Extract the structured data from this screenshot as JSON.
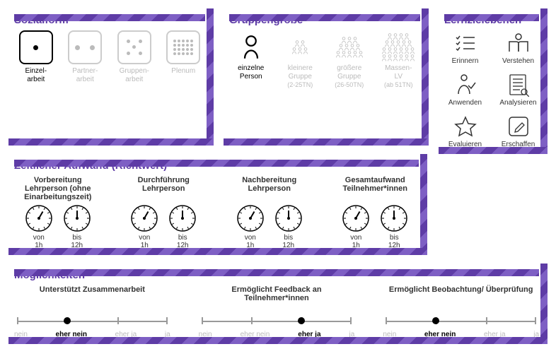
{
  "accent": "#5e3ca6",
  "sozial": {
    "title": "Sozialform",
    "items": [
      {
        "label1": "Einzel-",
        "label2": "arbeit",
        "active": true,
        "icon": "single-dot"
      },
      {
        "label1": "Partner-",
        "label2": "arbeit",
        "active": false,
        "icon": "two-dot"
      },
      {
        "label1": "Gruppen-",
        "label2": "arbeit",
        "active": false,
        "icon": "five-dot"
      },
      {
        "label1": "Plenum",
        "label2": "",
        "active": false,
        "icon": "grid"
      }
    ]
  },
  "gruppe": {
    "title": "Gruppengröße",
    "items": [
      {
        "l1": "einzelne",
        "l2": "Person",
        "l3": "",
        "active": true
      },
      {
        "l1": "kleinere",
        "l2": "Gruppe",
        "l3": "(2-25TN)",
        "active": false
      },
      {
        "l1": "größere",
        "l2": "Gruppe",
        "l3": "(26-50TN)",
        "active": false
      },
      {
        "l1": "Massen-",
        "l2": "LV",
        "l3": "(ab 51TN)",
        "active": false
      }
    ]
  },
  "lernziele": {
    "title": "Lernzielebenen",
    "items": [
      "Erinnern",
      "Verstehen",
      "Anwenden",
      "Analysieren",
      "Evaluieren",
      "Erschaffen"
    ]
  },
  "zeit": {
    "title": "Zeitlicher Aufwand (Richtwert)",
    "groups": [
      {
        "h": "Vorbereitung Lehrperson (ohne Einarbeitungszeit)",
        "von": "1h",
        "bis": "12h",
        "a1": 30,
        "a2": 360
      },
      {
        "h": "Durchführung Lehrperson",
        "von": "1h",
        "bis": "12h",
        "a1": 30,
        "a2": 360
      },
      {
        "h": "Nachbereitung Lehrperson",
        "von": "1h",
        "bis": "12h",
        "a1": 30,
        "a2": 360
      },
      {
        "h": "Gesamtaufwand Teilnehmer*innen",
        "von": "1h",
        "bis": "12h",
        "a1": 30,
        "a2": 360
      }
    ],
    "vonLabel": "von",
    "bisLabel": "bis"
  },
  "moegl": {
    "title": "Möglichkeiten",
    "scale": [
      "nein",
      "eher nein",
      "eher ja",
      "ja"
    ],
    "items": [
      {
        "h": "Unterstützt Zusammenarbeit",
        "sel": 1
      },
      {
        "h": "Ermöglicht Feedback an Teilnehmer*innen",
        "sel": 2
      },
      {
        "h": "Ermöglicht Beobachtung/ Überprüfung",
        "sel": 1
      }
    ]
  }
}
